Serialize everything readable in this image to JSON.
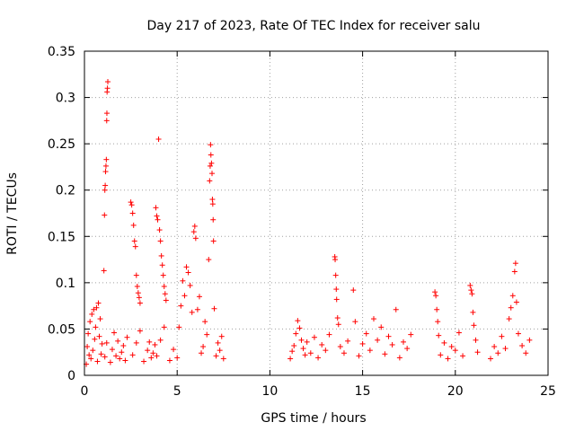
{
  "chart_data": {
    "type": "scatter",
    "title": "Day 217 of 2023, Rate Of TEC Index for receiver salu",
    "xlabel": "GPS time / hours",
    "ylabel": "ROTI / TECUs",
    "xlim": [
      0,
      25
    ],
    "ylim": [
      0,
      0.35
    ],
    "x_ticks": [
      0,
      5,
      10,
      15,
      20,
      25
    ],
    "y_ticks": [
      0,
      0.05,
      0.1,
      0.15,
      0.2,
      0.25,
      0.3,
      0.35
    ],
    "x_tick_labels": [
      "0",
      "5",
      "10",
      "15",
      "20",
      "25"
    ],
    "y_tick_labels": [
      "0",
      "0.05",
      "0.1",
      "0.15",
      "0.2",
      "0.25",
      "0.3",
      "0.35"
    ],
    "grid": true,
    "legend": "none",
    "marker": "plus",
    "color": "#ff0000",
    "series": [
      {
        "name": "ROTI",
        "points": [
          [
            0.1,
            0.012
          ],
          [
            0.15,
            0.031
          ],
          [
            0.2,
            0.045
          ],
          [
            0.25,
            0.022
          ],
          [
            0.3,
            0.058
          ],
          [
            0.35,
            0.018
          ],
          [
            0.4,
            0.066
          ],
          [
            0.45,
            0.027
          ],
          [
            0.5,
            0.071
          ],
          [
            0.55,
            0.039
          ],
          [
            0.6,
            0.052
          ],
          [
            0.65,
            0.073
          ],
          [
            0.7,
            0.015
          ],
          [
            0.75,
            0.078
          ],
          [
            0.8,
            0.042
          ],
          [
            0.85,
            0.061
          ],
          [
            0.9,
            0.023
          ],
          [
            0.95,
            0.034
          ],
          [
            1.05,
            0.113
          ],
          [
            1.08,
            0.173
          ],
          [
            1.1,
            0.2
          ],
          [
            1.12,
            0.205
          ],
          [
            1.14,
            0.22
          ],
          [
            1.16,
            0.226
          ],
          [
            1.18,
            0.233
          ],
          [
            1.2,
            0.275
          ],
          [
            1.21,
            0.283
          ],
          [
            1.22,
            0.306
          ],
          [
            1.24,
            0.31
          ],
          [
            1.26,
            0.317
          ],
          [
            1.1,
            0.02
          ],
          [
            1.2,
            0.035
          ],
          [
            1.4,
            0.014
          ],
          [
            1.5,
            0.028
          ],
          [
            1.6,
            0.046
          ],
          [
            1.7,
            0.021
          ],
          [
            1.8,
            0.037
          ],
          [
            1.9,
            0.018
          ],
          [
            2.0,
            0.025
          ],
          [
            2.1,
            0.032
          ],
          [
            2.2,
            0.016
          ],
          [
            2.3,
            0.041
          ],
          [
            2.5,
            0.187
          ],
          [
            2.55,
            0.184
          ],
          [
            2.6,
            0.175
          ],
          [
            2.65,
            0.162
          ],
          [
            2.7,
            0.145
          ],
          [
            2.75,
            0.139
          ],
          [
            2.8,
            0.108
          ],
          [
            2.85,
            0.096
          ],
          [
            2.9,
            0.089
          ],
          [
            2.95,
            0.084
          ],
          [
            3.0,
            0.078
          ],
          [
            2.6,
            0.022
          ],
          [
            2.8,
            0.035
          ],
          [
            3.0,
            0.048
          ],
          [
            3.2,
            0.015
          ],
          [
            3.4,
            0.027
          ],
          [
            3.5,
            0.036
          ],
          [
            3.6,
            0.019
          ],
          [
            3.7,
            0.024
          ],
          [
            3.8,
            0.033
          ],
          [
            3.85,
            0.181
          ],
          [
            3.9,
            0.172
          ],
          [
            3.95,
            0.168
          ],
          [
            4.0,
            0.255
          ],
          [
            4.05,
            0.157
          ],
          [
            4.1,
            0.145
          ],
          [
            4.15,
            0.129
          ],
          [
            4.2,
            0.119
          ],
          [
            4.25,
            0.108
          ],
          [
            4.3,
            0.096
          ],
          [
            4.35,
            0.088
          ],
          [
            4.4,
            0.081
          ],
          [
            3.9,
            0.021
          ],
          [
            4.1,
            0.038
          ],
          [
            4.3,
            0.052
          ],
          [
            4.6,
            0.016
          ],
          [
            4.8,
            0.028
          ],
          [
            5.0,
            0.019
          ],
          [
            5.1,
            0.052
          ],
          [
            5.2,
            0.075
          ],
          [
            5.3,
            0.102
          ],
          [
            5.4,
            0.086
          ],
          [
            5.5,
            0.117
          ],
          [
            5.6,
            0.111
          ],
          [
            5.7,
            0.097
          ],
          [
            5.8,
            0.068
          ],
          [
            5.9,
            0.155
          ],
          [
            5.95,
            0.161
          ],
          [
            6.0,
            0.148
          ],
          [
            6.1,
            0.071
          ],
          [
            6.2,
            0.085
          ],
          [
            6.3,
            0.024
          ],
          [
            6.4,
            0.031
          ],
          [
            6.5,
            0.058
          ],
          [
            6.6,
            0.044
          ],
          [
            6.7,
            0.125
          ],
          [
            6.75,
            0.21
          ],
          [
            6.78,
            0.226
          ],
          [
            6.8,
            0.249
          ],
          [
            6.82,
            0.238
          ],
          [
            6.85,
            0.229
          ],
          [
            6.88,
            0.218
          ],
          [
            6.9,
            0.19
          ],
          [
            6.92,
            0.185
          ],
          [
            6.94,
            0.168
          ],
          [
            6.96,
            0.145
          ],
          [
            7.0,
            0.072
          ],
          [
            7.1,
            0.021
          ],
          [
            7.2,
            0.035
          ],
          [
            7.3,
            0.027
          ],
          [
            7.4,
            0.042
          ],
          [
            7.5,
            0.018
          ],
          [
            11.1,
            0.018
          ],
          [
            11.2,
            0.026
          ],
          [
            11.3,
            0.032
          ],
          [
            11.4,
            0.045
          ],
          [
            11.5,
            0.059
          ],
          [
            11.6,
            0.051
          ],
          [
            11.7,
            0.038
          ],
          [
            11.8,
            0.029
          ],
          [
            11.9,
            0.022
          ],
          [
            12.0,
            0.036
          ],
          [
            12.2,
            0.024
          ],
          [
            12.4,
            0.041
          ],
          [
            12.6,
            0.019
          ],
          [
            12.8,
            0.033
          ],
          [
            13.0,
            0.027
          ],
          [
            13.2,
            0.044
          ],
          [
            13.5,
            0.128
          ],
          [
            13.52,
            0.125
          ],
          [
            13.55,
            0.108
          ],
          [
            13.58,
            0.093
          ],
          [
            13.6,
            0.082
          ],
          [
            13.65,
            0.062
          ],
          [
            13.7,
            0.055
          ],
          [
            13.8,
            0.031
          ],
          [
            14.0,
            0.024
          ],
          [
            14.2,
            0.037
          ],
          [
            14.5,
            0.092
          ],
          [
            14.6,
            0.058
          ],
          [
            14.8,
            0.021
          ],
          [
            15.0,
            0.034
          ],
          [
            15.2,
            0.045
          ],
          [
            15.4,
            0.027
          ],
          [
            15.6,
            0.061
          ],
          [
            15.8,
            0.038
          ],
          [
            16.0,
            0.052
          ],
          [
            16.2,
            0.023
          ],
          [
            16.4,
            0.042
          ],
          [
            16.6,
            0.033
          ],
          [
            16.8,
            0.071
          ],
          [
            17.0,
            0.019
          ],
          [
            17.2,
            0.036
          ],
          [
            17.4,
            0.029
          ],
          [
            17.6,
            0.044
          ],
          [
            18.9,
            0.09
          ],
          [
            18.95,
            0.086
          ],
          [
            19.0,
            0.071
          ],
          [
            19.05,
            0.058
          ],
          [
            19.1,
            0.043
          ],
          [
            19.2,
            0.022
          ],
          [
            19.4,
            0.035
          ],
          [
            19.6,
            0.018
          ],
          [
            19.8,
            0.031
          ],
          [
            20.0,
            0.027
          ],
          [
            20.2,
            0.046
          ],
          [
            20.4,
            0.021
          ],
          [
            20.8,
            0.097
          ],
          [
            20.85,
            0.092
          ],
          [
            20.9,
            0.088
          ],
          [
            20.95,
            0.068
          ],
          [
            21.0,
            0.054
          ],
          [
            21.1,
            0.038
          ],
          [
            21.2,
            0.025
          ],
          [
            21.9,
            0.018
          ],
          [
            22.1,
            0.031
          ],
          [
            22.3,
            0.024
          ],
          [
            22.5,
            0.042
          ],
          [
            22.7,
            0.029
          ],
          [
            22.9,
            0.061
          ],
          [
            23.0,
            0.073
          ],
          [
            23.1,
            0.086
          ],
          [
            23.2,
            0.112
          ],
          [
            23.25,
            0.121
          ],
          [
            23.3,
            0.079
          ],
          [
            23.4,
            0.045
          ],
          [
            23.6,
            0.032
          ],
          [
            23.8,
            0.024
          ],
          [
            24.0,
            0.038
          ]
        ]
      }
    ]
  }
}
